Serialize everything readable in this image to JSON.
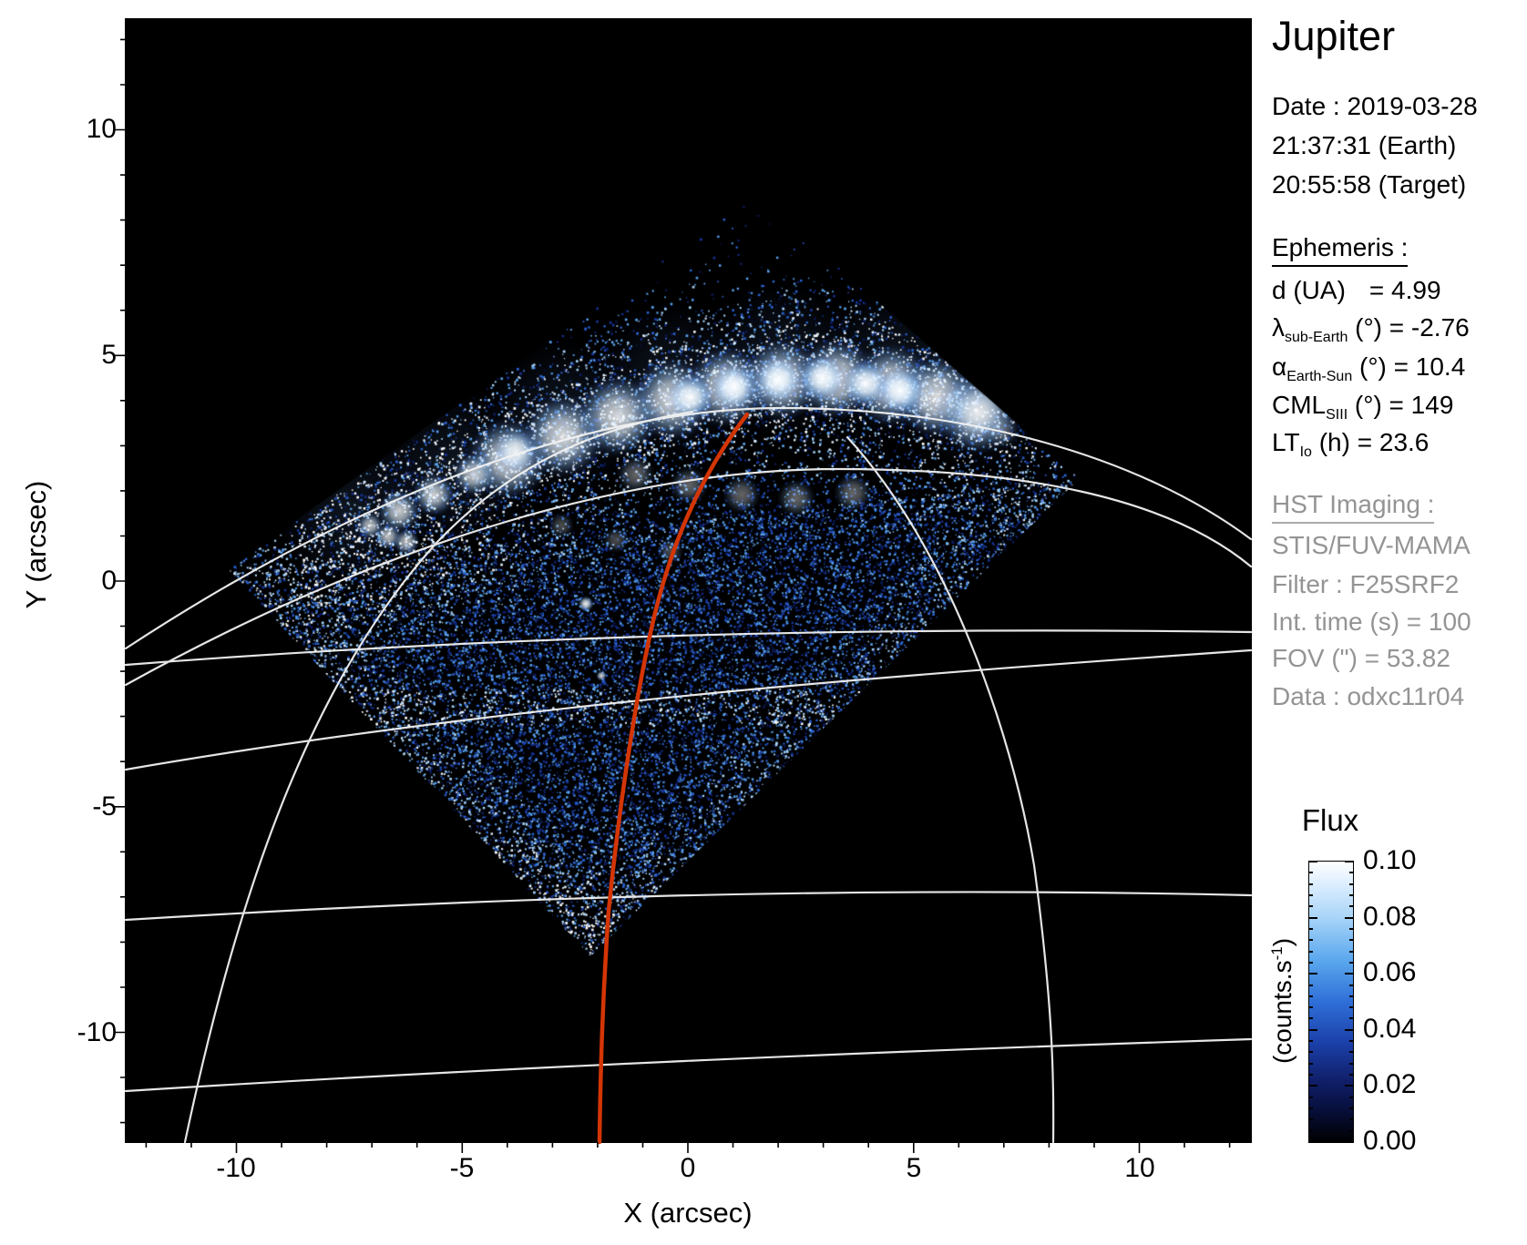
{
  "title": "Jupiter",
  "datetime": {
    "line1": "Date : 2019-03-28",
    "line2": "21:37:31 (Earth)",
    "line3": "20:55:58 (Target)"
  },
  "ephemeris": {
    "header": "Ephemeris :",
    "rows": [
      {
        "symbol": "d",
        "sub": "",
        "rest": " (UA)",
        "value": "= 4.99"
      },
      {
        "symbol": "λ",
        "sub": "sub-Earth",
        "rest": " (°) ",
        "value": "= -2.76"
      },
      {
        "symbol": "α",
        "sub": "Earth-Sun",
        "rest": " (°) ",
        "value": "= 10.4"
      },
      {
        "symbol": "CML",
        "sub": "SIII",
        "rest": " (°) ",
        "value": "= 149"
      },
      {
        "symbol": "LT",
        "sub": "Io",
        "rest": " (h) ",
        "value": "= 23.6"
      }
    ]
  },
  "hst": {
    "header": "HST Imaging :",
    "rows": [
      "STIS/FUV-MAMA",
      "Filter : F25SRF2",
      "Int. time (s) = 100",
      "FOV (\") = 53.82",
      "Data : odxc11r04"
    ]
  },
  "colorbar": {
    "title": "Flux",
    "unit_base": "(counts.s",
    "unit_sup": "-1",
    "unit_close": ")",
    "ticks": [
      "0.10",
      "0.08",
      "0.06",
      "0.04",
      "0.02",
      "0.00"
    ]
  },
  "axes": {
    "x_label": "X (arcsec)",
    "y_label": "Y (arcsec)",
    "x_ticks": [
      "-10",
      "-5",
      "0",
      "5",
      "10"
    ],
    "y_ticks": [
      "10",
      "5",
      "0",
      "-5",
      "-10"
    ]
  },
  "colors": {
    "background": "#ffffff",
    "plot_background": "#000000",
    "graticule": "#f2f2f2",
    "track_red": "#d43505",
    "panel_gray": "#949494",
    "noise_palette": [
      "#0c1c60",
      "#16349b",
      "#2b62cf",
      "#58a0ea",
      "#a6d2f8",
      "#e2f1ff",
      "#ffffff"
    ]
  },
  "chart_data": {
    "type": "heatmap",
    "title": "Jupiter",
    "xlabel": "X (arcsec)",
    "ylabel": "Y (arcsec)",
    "xlim": [
      -12.5,
      12.5
    ],
    "ylim": [
      -12.5,
      12.5
    ],
    "x_ticks": [
      -10,
      -5,
      0,
      5,
      10
    ],
    "y_ticks": [
      10,
      5,
      0,
      -5,
      -10
    ],
    "grid": false,
    "colorbar": {
      "title": "Flux",
      "unit": "counts.s-1",
      "range": [
        0.0,
        0.1
      ],
      "ticks": [
        0.1,
        0.08,
        0.06,
        0.04,
        0.02,
        0.0
      ],
      "position": "right",
      "colormap": "black-navy-blue-white"
    },
    "content": {
      "description": "HST/STIS far-UV image of Jupiter north polar aurora over black sky",
      "detector_fov_diamond_arcsec": {
        "left": [
          -10.2,
          0.3
        ],
        "top": [
          1.5,
          8.6
        ],
        "right": [
          8.7,
          2.3
        ],
        "bottom": [
          -2.2,
          -8.3
        ]
      },
      "aurora_main_oval_arcsec": {
        "x_extent": [
          -6.8,
          4.8
        ],
        "y_extent": [
          2.4,
          4.4
        ],
        "peak_flux_counts_s": 0.1
      },
      "io_footprint_spots_arcsec": [
        [
          -2.3,
          -0.5
        ],
        [
          -1.9,
          -2.1
        ]
      ],
      "graticule": "white planetary latitude/longitude wireframe arcs",
      "red_track_arcsec": {
        "from": [
          1.3,
          3.7
        ],
        "to": [
          -2.0,
          -12.4
        ]
      }
    },
    "annotations": {
      "distance_UA": 4.99,
      "lambda_sub_earth_deg": -2.76,
      "alpha_earth_sun_deg": 10.4,
      "CML_SIII_deg": 149,
      "LT_Io_h": 23.6,
      "instrument": "STIS/FUV-MAMA",
      "filter": "F25SRF2",
      "int_time_s": 100,
      "FOV_arcsec": 53.82,
      "dataset": "odxc11r04"
    }
  }
}
